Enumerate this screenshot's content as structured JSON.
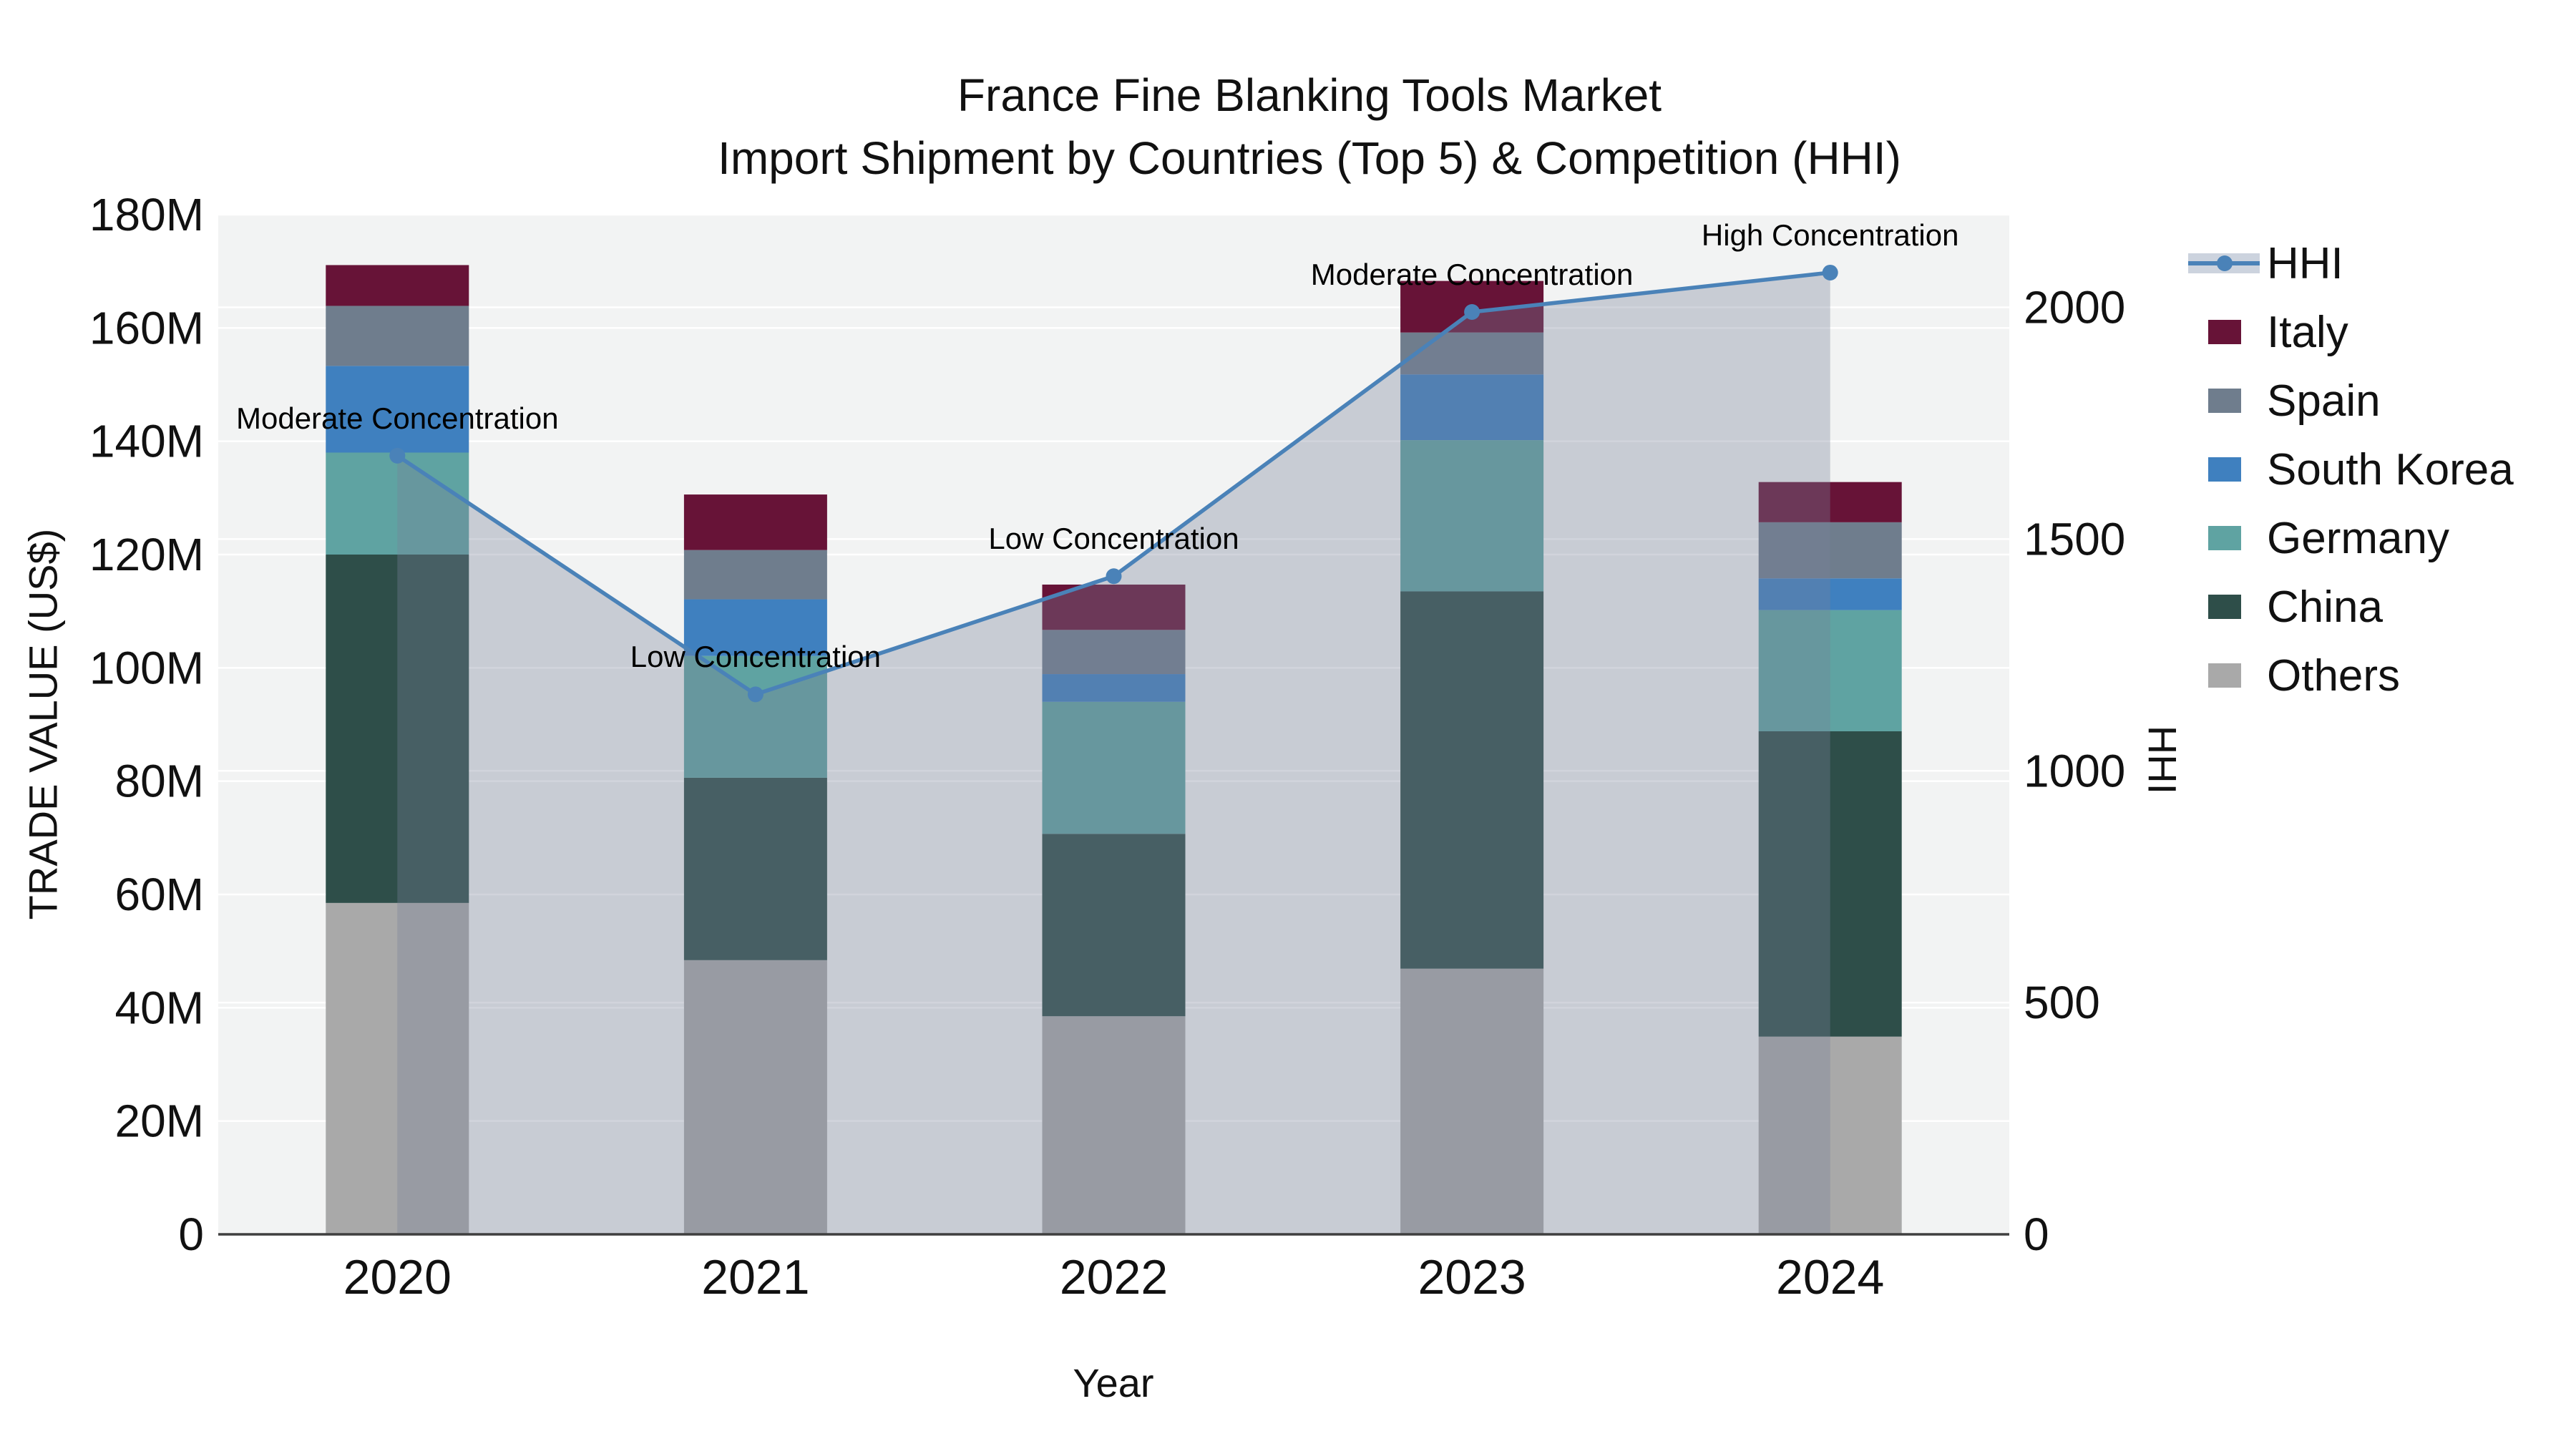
{
  "title": {
    "line1": "France Fine Blanking Tools Market",
    "line2": "Import Shipment by Countries (Top 5) & Competition (HHI)"
  },
  "axes": {
    "x_title": "Year",
    "y_left_title": "TRADE VALUE (US$)",
    "y_right_title": "HHI"
  },
  "legend": {
    "items": [
      {
        "label": "HHI",
        "type": "line",
        "color": "#4a82b8"
      },
      {
        "label": "Italy",
        "type": "swatch",
        "color": "#671337"
      },
      {
        "label": "Spain",
        "type": "swatch",
        "color": "#6f7d8d"
      },
      {
        "label": "South Korea",
        "type": "swatch",
        "color": "#3f80bf"
      },
      {
        "label": "Germany",
        "type": "swatch",
        "color": "#5fa3a2"
      },
      {
        "label": "China",
        "type": "swatch",
        "color": "#2e4e49"
      },
      {
        "label": "Others",
        "type": "swatch",
        "color": "#a9a9a9"
      }
    ]
  },
  "chart_data": {
    "type": "bar+line",
    "title": "France Fine Blanking Tools Market — Import Shipment by Countries (Top 5) & Competition (HHI)",
    "categories": [
      "2020",
      "2021",
      "2022",
      "2023",
      "2024"
    ],
    "bar_value_unit": "million US$",
    "stack_order_bottom_to_top": [
      "Others",
      "China",
      "Germany",
      "South Korea",
      "Spain",
      "Italy"
    ],
    "series": [
      {
        "name": "Others",
        "color": "#a9a9a9",
        "values": [
          58.5,
          48.4,
          38.5,
          46.9,
          34.9
        ]
      },
      {
        "name": "China",
        "color": "#2e4e49",
        "values": [
          61.5,
          32.2,
          32.2,
          66.6,
          53.9
        ]
      },
      {
        "name": "Germany",
        "color": "#5fa3a2",
        "values": [
          18.0,
          21.5,
          23.3,
          26.7,
          21.4
        ]
      },
      {
        "name": "South Korea",
        "color": "#3f80bf",
        "values": [
          15.3,
          10.0,
          4.9,
          11.6,
          5.6
        ]
      },
      {
        "name": "Spain",
        "color": "#6f7d8d",
        "values": [
          10.6,
          8.7,
          7.8,
          7.4,
          9.9
        ]
      },
      {
        "name": "Italy",
        "color": "#671337",
        "values": [
          7.2,
          9.8,
          8.0,
          9.1,
          7.1
        ]
      }
    ],
    "stack_totals": [
      171.1,
      130.6,
      114.7,
      168.3,
      132.8
    ],
    "line_series": {
      "name": "HHI",
      "color": "#4a82b8",
      "area_fill": "rgba(119,129,152,0.34)",
      "values": [
        1680,
        1165,
        1420,
        1990,
        2075
      ]
    },
    "annotations": [
      {
        "category": "2020",
        "label": "Moderate Concentration"
      },
      {
        "category": "2021",
        "label": "Low Concentration"
      },
      {
        "category": "2022",
        "label": "Low Concentration"
      },
      {
        "category": "2023",
        "label": "Moderate Concentration"
      },
      {
        "category": "2024",
        "label": "High Concentration"
      }
    ],
    "axis": {
      "y_left": {
        "min": 0,
        "max": 180,
        "unit": "M",
        "ticks": [
          {
            "v": 0,
            "label": "0"
          },
          {
            "v": 20,
            "label": "20M"
          },
          {
            "v": 40,
            "label": "40M"
          },
          {
            "v": 60,
            "label": "60M"
          },
          {
            "v": 80,
            "label": "80M"
          },
          {
            "v": 100,
            "label": "100M"
          },
          {
            "v": 120,
            "label": "120M"
          },
          {
            "v": 140,
            "label": "140M"
          },
          {
            "v": 160,
            "label": "160M"
          },
          {
            "v": 180,
            "label": "180M"
          }
        ]
      },
      "y_right": {
        "min": 0,
        "max": 2200,
        "ticks": [
          {
            "v": 0,
            "label": "0"
          },
          {
            "v": 500,
            "label": "500"
          },
          {
            "v": 1000,
            "label": "1000"
          },
          {
            "v": 1500,
            "label": "1500"
          },
          {
            "v": 2000,
            "label": "2000"
          }
        ]
      }
    },
    "grid": true,
    "legend_position": "right",
    "plot_bg": "#f2f3f3",
    "grid_color": "#ffffff",
    "baseline_color": "#3f3f3f"
  }
}
